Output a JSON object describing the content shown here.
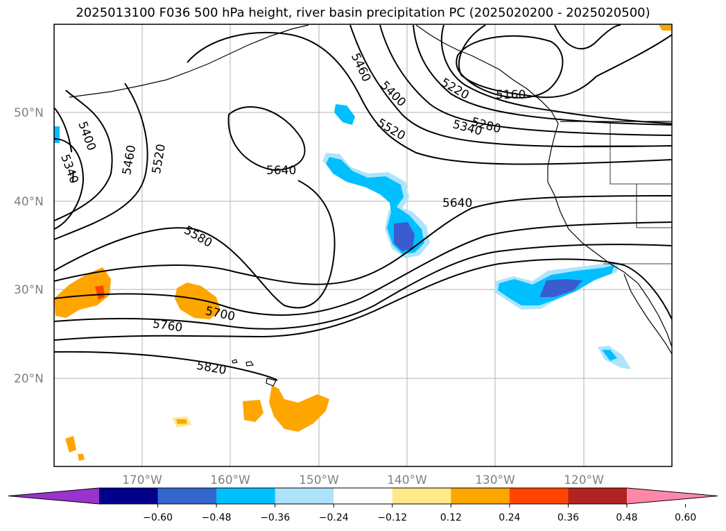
{
  "title": "2025013100 F036 500 hPa height, river basin precipitation PC (2025020200 - 2025020500)",
  "lat_labels": [
    "50°N",
    "40°N",
    "30°N",
    "20°N"
  ],
  "lon_labels": [
    "170°W",
    "160°W",
    "150°W",
    "140°W",
    "130°W",
    "120°W"
  ],
  "contour_labels": [
    "5400",
    "5340",
    "5460",
    "5520",
    "5640",
    "5580",
    "5700",
    "5760",
    "5820",
    "5460",
    "5400",
    "5520",
    "5220",
    "5160",
    "5280",
    "5340",
    "5640"
  ],
  "colorbar": {
    "colors": [
      "#9933cc",
      "#00008b",
      "#3366cc",
      "#00bfff",
      "#aee4fb",
      "#ffffff",
      "#ffe98a",
      "#ffa500",
      "#ff4500",
      "#b22222",
      "#ff88aa"
    ],
    "ticks": [
      "−0.60",
      "−0.48",
      "−0.36",
      "−0.24",
      "−0.12",
      "0.12",
      "0.24",
      "0.36",
      "0.48",
      "0.60"
    ]
  }
}
